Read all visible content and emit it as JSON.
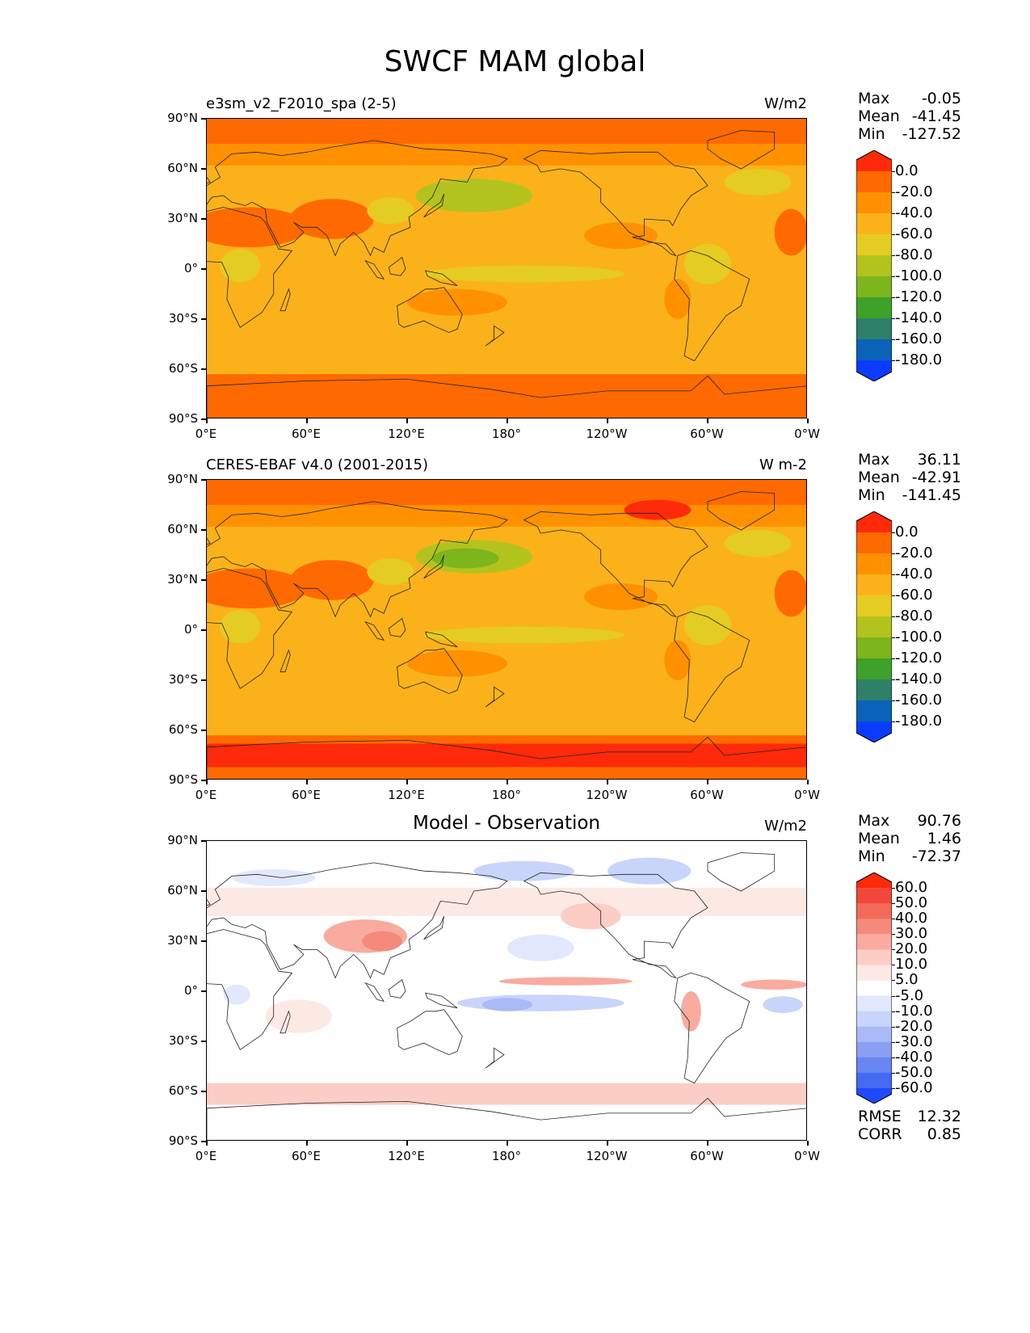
{
  "title": "SWCF MAM global",
  "panels": [
    {
      "key": "model",
      "title_left": "e3sm_v2_F2010_spa (2-5)",
      "title_center": "",
      "units": "W/m2",
      "stats": [
        [
          "Max",
          "-0.05"
        ],
        [
          "Mean",
          "-41.45"
        ],
        [
          "Min",
          "-127.52"
        ]
      ],
      "colorbar": {
        "labels": [
          "0.0",
          "-20.0",
          "-40.0",
          "-60.0",
          "-80.0",
          "-100.0",
          "-120.0",
          "-140.0",
          "-160.0",
          "-180.0"
        ],
        "colors": [
          "#ff2a0a",
          "#ff6a00",
          "#ff9100",
          "#fbb21a",
          "#e4cc22",
          "#b3c31e",
          "#7db51c",
          "#3ea12a",
          "#2f8068",
          "#0a63b8",
          "#0a3cff"
        ]
      }
    },
    {
      "key": "obs",
      "title_left": "CERES-EBAF v4.0 (2001-2015)",
      "title_center": "",
      "units": "W m-2",
      "stats": [
        [
          "Max",
          "36.11"
        ],
        [
          "Mean",
          "-42.91"
        ],
        [
          "Min",
          "-141.45"
        ]
      ],
      "colorbar": {
        "labels": [
          "0.0",
          "-20.0",
          "-40.0",
          "-60.0",
          "-80.0",
          "-100.0",
          "-120.0",
          "-140.0",
          "-160.0",
          "-180.0"
        ],
        "colors": [
          "#ff2a0a",
          "#ff6a00",
          "#ff9100",
          "#fbb21a",
          "#e4cc22",
          "#b3c31e",
          "#7db51c",
          "#3ea12a",
          "#2f8068",
          "#0a63b8",
          "#0a3cff"
        ]
      }
    },
    {
      "key": "diff",
      "title_left": "",
      "title_center": "Model - Observation",
      "units": "W/m2",
      "stats": [
        [
          "Max",
          "90.76"
        ],
        [
          "Mean",
          "1.46"
        ],
        [
          "Min",
          "-72.37"
        ]
      ],
      "colorbar": {
        "labels": [
          "60.0",
          "50.0",
          "40.0",
          "30.0",
          "20.0",
          "10.0",
          "5.0",
          "-5.0",
          "-10.0",
          "-20.0",
          "-30.0",
          "-40.0",
          "-50.0",
          "-60.0"
        ],
        "colors": [
          "#ff2a0a",
          "#f2473a",
          "#f46a5a",
          "#f68a7a",
          "#f8ab9e",
          "#fbcdc4",
          "#fde9e4",
          "#ffffff",
          "#e2e8fc",
          "#c9d4fb",
          "#a9baf7",
          "#8aa0f4",
          "#6886f2",
          "#456af2",
          "#1f4aff"
        ]
      }
    }
  ],
  "x_ticks": [
    "0°E",
    "60°E",
    "120°E",
    "180°",
    "120°W",
    "60°W",
    "0°W"
  ],
  "y_ticks": [
    "90°N",
    "60°N",
    "30°N",
    "0°",
    "30°S",
    "60°S",
    "90°S"
  ],
  "footer": [
    [
      "RMSE",
      "12.32"
    ],
    [
      "CORR",
      "0.85"
    ]
  ]
}
